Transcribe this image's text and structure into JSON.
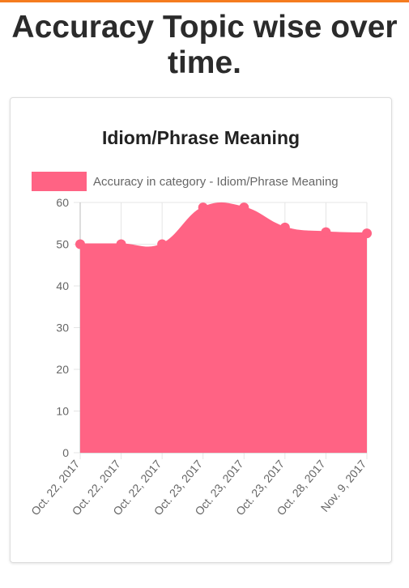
{
  "page": {
    "title": "Accuracy Topic wise over time."
  },
  "colors": {
    "accent": "#f57c1f",
    "series": "#ff6384",
    "grid": "#e5e5e5"
  },
  "chart_data": {
    "type": "area",
    "title": "Idiom/Phrase Meaning",
    "legend_position": "top",
    "grid": true,
    "xlabel": "",
    "ylabel": "",
    "ylim": [
      0,
      60
    ],
    "yticks": [
      0,
      10,
      20,
      30,
      40,
      50,
      60
    ],
    "categories": [
      "Oct. 22, 2017",
      "Oct. 22, 2017",
      "Oct. 22, 2017",
      "Oct. 23, 2017",
      "Oct. 23, 2017",
      "Oct. 23, 2017",
      "Oct. 28, 2017",
      "Nov. 9, 2017"
    ],
    "series": [
      {
        "name": "Accuracy in category - Idiom/Phrase Meaning",
        "values": [
          50,
          50,
          50,
          58.8,
          58.8,
          54,
          52.9,
          52.6
        ]
      }
    ]
  }
}
